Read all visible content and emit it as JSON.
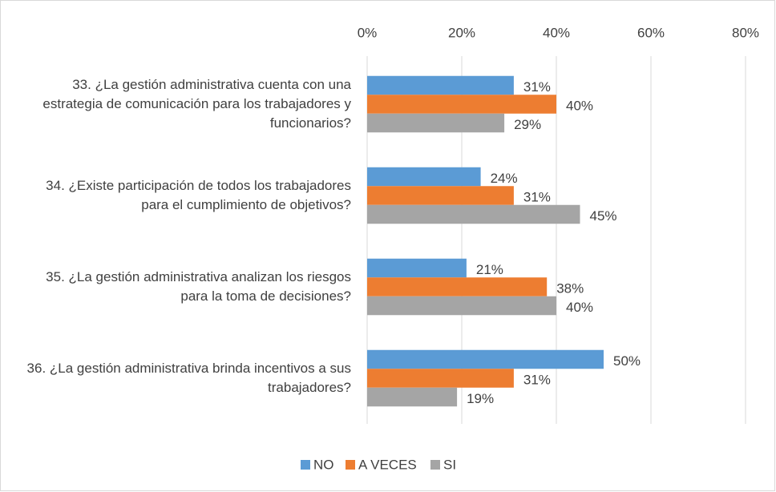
{
  "chart_data": {
    "type": "bar",
    "orientation": "horizontal",
    "categories": [
      "33. ¿La gestión administrativa cuenta con una estrategia de comunicación para los trabajadores y funcionarios?",
      "34. ¿Existe participación de todos los trabajadores  para el cumplimiento de objetivos?",
      "35. ¿La gestión administrativa analizan los riesgos para la toma de decisiones?",
      "36. ¿La gestión administrativa brinda incentivos a sus trabajadores?"
    ],
    "series": [
      {
        "name": "NO",
        "color": "#5b9bd5",
        "values": [
          31,
          24,
          21,
          50
        ],
        "value_labels": [
          "31%",
          "24%",
          "21%",
          "50%"
        ]
      },
      {
        "name": "A VECES",
        "color": "#ed7d31",
        "values": [
          40,
          31,
          38,
          31
        ],
        "value_labels": [
          "40%",
          "31%",
          "38%",
          "31%"
        ]
      },
      {
        "name": "SI",
        "color": "#a5a5a5",
        "values": [
          29,
          45,
          40,
          19
        ],
        "value_labels": [
          "29%",
          "45%",
          "40%",
          "19%"
        ]
      }
    ],
    "xlim": [
      0,
      80
    ],
    "xticks": [
      {
        "value": 0,
        "label": "0%"
      },
      {
        "value": 20,
        "label": "20%"
      },
      {
        "value": 40,
        "label": "40%"
      },
      {
        "value": 60,
        "label": "60%"
      },
      {
        "value": 80,
        "label": "80%"
      }
    ],
    "grid": true,
    "legend": "bottom"
  }
}
